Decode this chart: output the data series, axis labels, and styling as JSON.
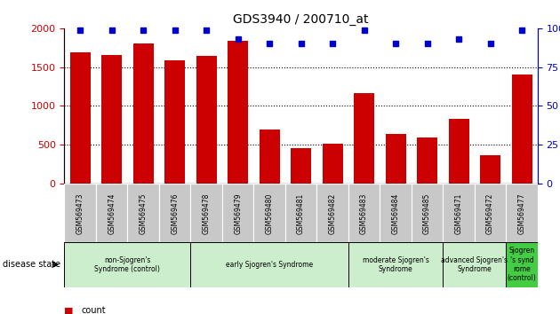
{
  "title": "GDS3940 / 200710_at",
  "samples": [
    "GSM569473",
    "GSM569474",
    "GSM569475",
    "GSM569476",
    "GSM569478",
    "GSM569479",
    "GSM569480",
    "GSM569481",
    "GSM569482",
    "GSM569483",
    "GSM569484",
    "GSM569485",
    "GSM569471",
    "GSM569472",
    "GSM569477"
  ],
  "counts": [
    1690,
    1655,
    1800,
    1590,
    1645,
    1840,
    700,
    460,
    510,
    1160,
    645,
    600,
    830,
    370,
    1400
  ],
  "percentiles": [
    99,
    99,
    99,
    99,
    99,
    93,
    90,
    90,
    90,
    99,
    90,
    90,
    93,
    90,
    99
  ],
  "ylim_left": [
    0,
    2000
  ],
  "ylim_right": [
    0,
    100
  ],
  "yticks_left": [
    0,
    500,
    1000,
    1500,
    2000
  ],
  "yticks_right": [
    0,
    25,
    50,
    75,
    100
  ],
  "bar_color": "#cc0000",
  "dot_color": "#0000cc",
  "groups": [
    {
      "label": "non-Sjogren's\nSyndrome (control)",
      "start": 0,
      "end": 4,
      "color": "#cceecc"
    },
    {
      "label": "early Sjogren's Syndrome",
      "start": 4,
      "end": 9,
      "color": "#cceecc"
    },
    {
      "label": "moderate Sjogren's\nSyndrome",
      "start": 9,
      "end": 12,
      "color": "#cceecc"
    },
    {
      "label": "advanced Sjogren's\nSyndrome",
      "start": 12,
      "end": 14,
      "color": "#cceecc"
    },
    {
      "label": "Sjogren\n's synd\nrome\n(control)",
      "start": 14,
      "end": 15,
      "color": "#44cc44"
    }
  ],
  "tick_bg_color": "#c8c8c8",
  "legend_count_color": "#cc0000",
  "legend_dot_color": "#0000cc",
  "bg_color": "#ffffff"
}
